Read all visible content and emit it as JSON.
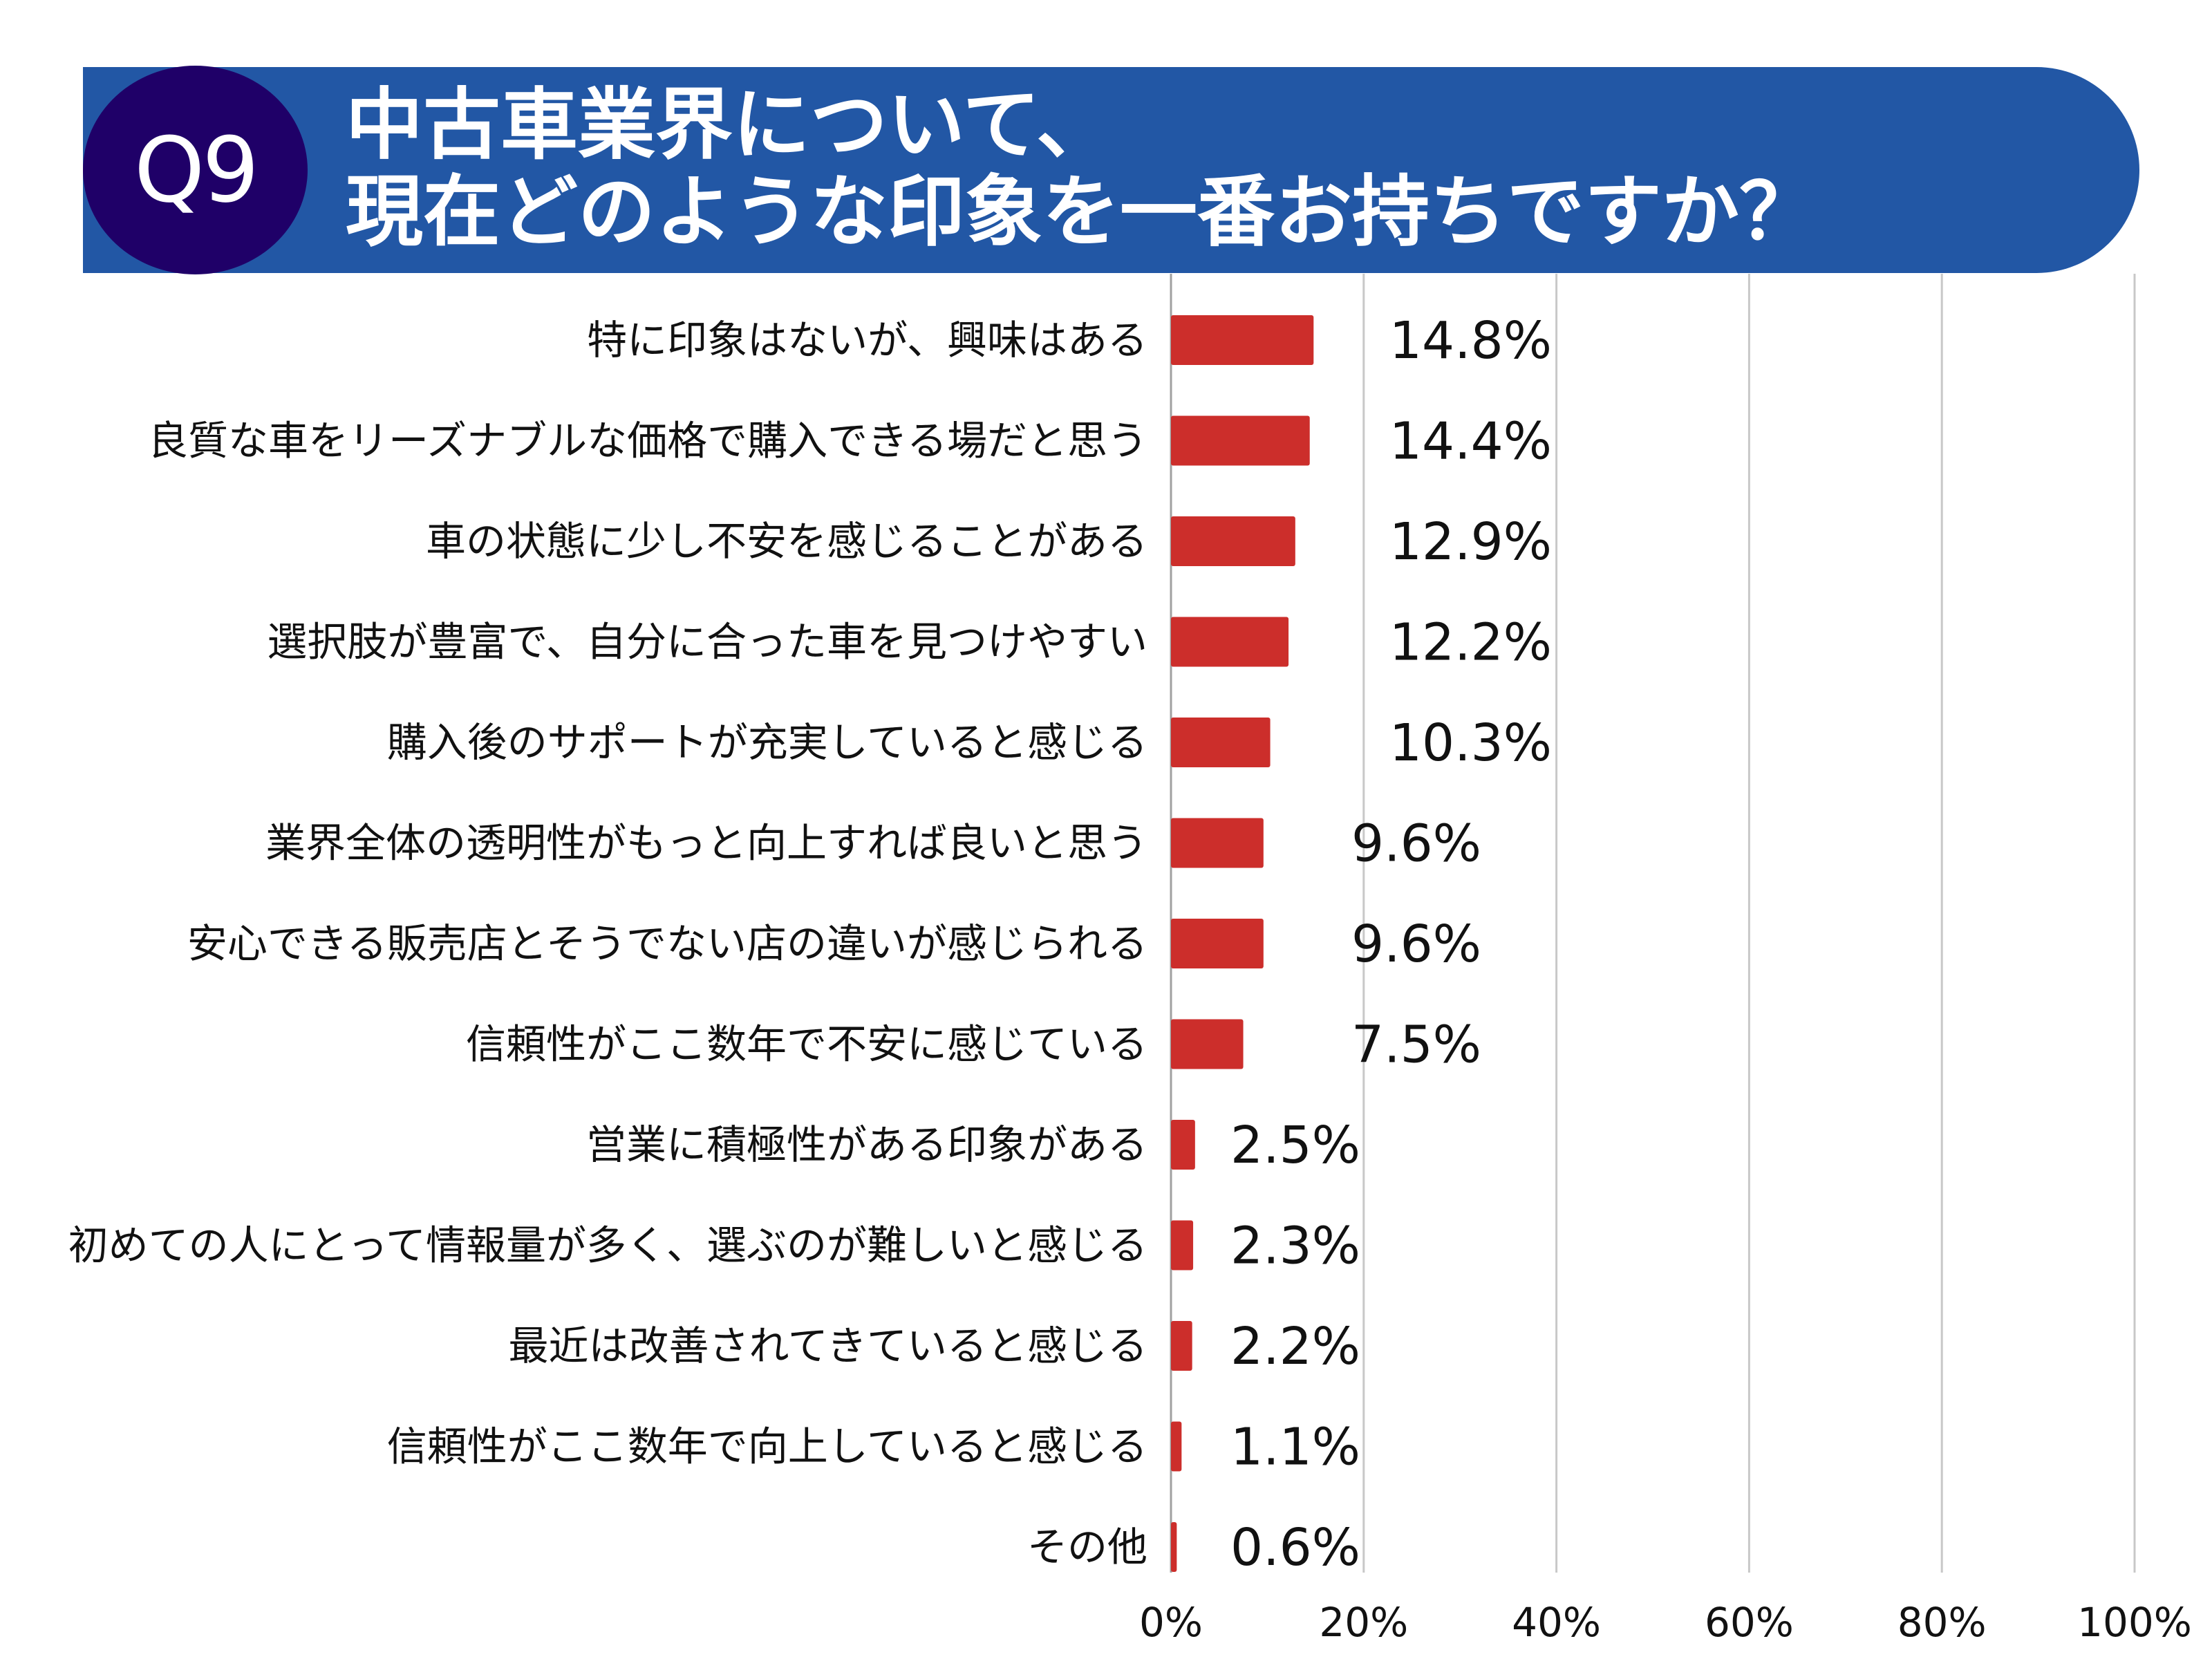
{
  "header": {
    "badge": "Q9",
    "title_line1": "中古車業界について、",
    "title_line2": "現在どのような印象を一番お持ちですか？"
  },
  "colors": {
    "bar": "#CC2E2B",
    "header": "#2257A5",
    "badge": "#1F0068",
    "grid": "#C8C8C8"
  },
  "chart_data": {
    "type": "bar",
    "orientation": "horizontal",
    "title": "中古車業界について、現在どのような印象を一番お持ちですか？",
    "categories": [
      "特に印象はないが、興味はある",
      "良質な車をリーズナブルな価格で購入できる場だと思う",
      "車の状態に少し不安を感じることがある",
      "選択肢が豊富で、自分に合った車を見つけやすい",
      "購入後のサポートが充実していると感じる",
      "業界全体の透明性がもっと向上すれば良いと思う",
      "安心できる販売店とそうでない店の違いが感じられる",
      "信頼性がここ数年で不安に感じている",
      "営業に積極性がある印象がある",
      "初めての人にとって情報量が多く、選ぶのが難しいと感じる",
      "最近は改善されてきていると感じる",
      "信頼性がここ数年で向上していると感じる",
      "その他"
    ],
    "values": [
      14.8,
      14.4,
      12.9,
      12.2,
      10.3,
      9.6,
      9.6,
      7.5,
      2.5,
      2.3,
      2.2,
      1.1,
      0.6
    ],
    "value_labels": [
      "14.8%",
      "14.4%",
      "12.9%",
      "12.2%",
      "10.3%",
      "9.6%",
      "9.6%",
      "7.5%",
      "2.5%",
      "2.3%",
      "2.2%",
      "1.1%",
      "0.6%"
    ],
    "xlim": [
      0,
      100
    ],
    "xticks": [
      "0%",
      "20%",
      "40%",
      "60%",
      "80%",
      "100%"
    ],
    "xtick_values": [
      0,
      20,
      40,
      60,
      80,
      100
    ],
    "grid": true,
    "xlabel": "",
    "ylabel": ""
  }
}
